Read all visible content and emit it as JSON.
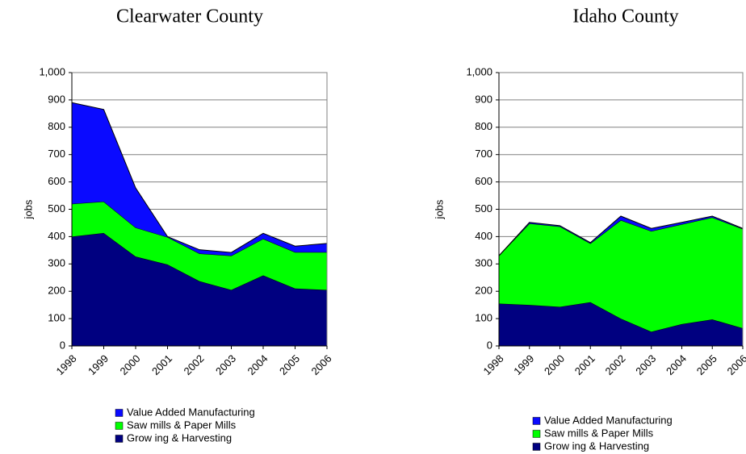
{
  "chart_data": [
    {
      "type": "area",
      "stacked": true,
      "title": "Clearwater County",
      "y_label": "jobs",
      "categories": [
        "1998",
        "1999",
        "2000",
        "2001",
        "2002",
        "2003",
        "2004",
        "2005",
        "2006"
      ],
      "series": [
        {
          "name": "Grow ing & Harvesting",
          "color": "#000080",
          "values": [
            400,
            413,
            327,
            298,
            237,
            205,
            258,
            210,
            205
          ]
        },
        {
          "name": "Saw mills & Paper Mills",
          "color": "#00ff00",
          "values": [
            120,
            115,
            106,
            100,
            101,
            125,
            134,
            133,
            138
          ]
        },
        {
          "name": "Value Added Manufacturing",
          "color": "#0a0aff",
          "values": [
            370,
            337,
            145,
            2,
            14,
            12,
            20,
            22,
            32
          ]
        }
      ],
      "ylim": [
        0,
        1000
      ],
      "yticks": [
        0,
        100,
        200,
        300,
        400,
        500,
        600,
        700,
        800,
        900,
        {
          "value": 1000,
          "label": "1,000"
        }
      ],
      "grid": true
    },
    {
      "type": "area",
      "stacked": true,
      "title": "Idaho County",
      "y_label": "jobs",
      "categories": [
        "1998",
        "1999",
        "2000",
        "2001",
        "2002",
        "2003",
        "2004",
        "2005",
        "2006"
      ],
      "series": [
        {
          "name": "Grow ing & Harvesting",
          "color": "#000080",
          "values": [
            155,
            150,
            143,
            160,
            100,
            52,
            80,
            97,
            65
          ]
        },
        {
          "name": "Saw mills & Paper Mills",
          "color": "#00ff00",
          "values": [
            175,
            298,
            294,
            215,
            360,
            368,
            365,
            373,
            363
          ]
        },
        {
          "name": "Value Added Manufacturing",
          "color": "#0a0aff",
          "values": [
            0,
            4,
            3,
            3,
            15,
            10,
            7,
            5,
            2
          ]
        }
      ],
      "ylim": [
        0,
        1000
      ],
      "yticks": [
        0,
        100,
        200,
        300,
        400,
        500,
        600,
        700,
        800,
        900,
        {
          "value": 1000,
          "label": "1,000"
        }
      ],
      "grid": true
    }
  ]
}
